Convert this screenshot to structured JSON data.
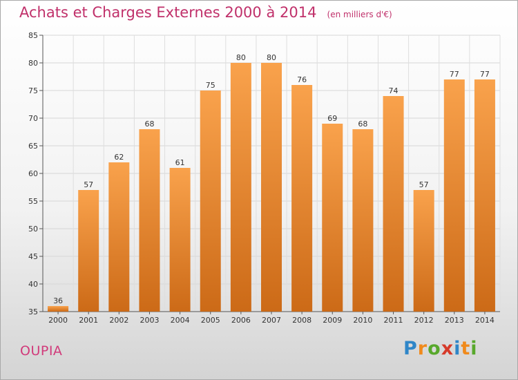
{
  "chart_data": {
    "type": "bar",
    "title": "Achats et Charges Externes 2000 à 2014",
    "subtitle": "(en milliers d'€)",
    "categories": [
      "2000",
      "2001",
      "2002",
      "2003",
      "2004",
      "2005",
      "2006",
      "2007",
      "2008",
      "2009",
      "2010",
      "2011",
      "2012",
      "2013",
      "2014"
    ],
    "values": [
      36,
      57,
      62,
      68,
      61,
      75,
      80,
      80,
      76,
      69,
      68,
      74,
      57,
      77,
      77
    ],
    "ylim": [
      35,
      85
    ],
    "yticks": [
      35,
      40,
      45,
      50,
      55,
      60,
      65,
      70,
      75,
      80,
      85
    ],
    "grid": true,
    "bar_color_top": "#f9a24c",
    "bar_color_bottom": "#cc6a17"
  },
  "commune": "OUPIA",
  "brand": {
    "letters": [
      "P",
      "r",
      "o",
      "x",
      "i",
      "t",
      "i"
    ],
    "colors": [
      "#2f86c8",
      "#f08a1c",
      "#58a82c",
      "#d63a2a",
      "#2f86c8",
      "#f08a1c",
      "#58a82c"
    ]
  }
}
